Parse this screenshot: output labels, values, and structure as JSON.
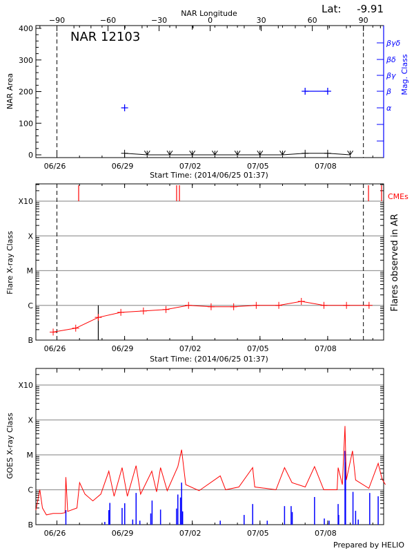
{
  "colors": {
    "flare": "#ff0000",
    "goes": "#ff0000",
    "goes_events": "#0000ff",
    "mag_class": "#0000ff",
    "area": "#000000",
    "grid": "#999999"
  },
  "footer": "Prepared by HELIO",
  "chart_data": [
    {
      "type": "line",
      "title": "NAR 12103",
      "lat_label": "Lat:",
      "lat_value": "-9.91",
      "top_axis_label": "NAR Longitude",
      "top_ticks": [
        -90,
        -60,
        -30,
        0,
        30,
        60,
        90
      ],
      "limb_lines": [
        {
          "date": "06/26 00:00",
          "lon": -90
        },
        {
          "date": "07/09 14:00",
          "lon": 90
        }
      ],
      "xlabel": "Start Time: (2014/06/25 01:37)",
      "xticks": [
        "06/26",
        "06/29",
        "07/02",
        "07/05",
        "07/08"
      ],
      "xrange": [
        "06/25 01:37",
        "07/10 13:30"
      ],
      "ylabel": "NAR Area",
      "ylim": [
        0,
        400
      ],
      "yticks": [
        0,
        100,
        200,
        300,
        400
      ],
      "y2label": "Mag. Class",
      "y2ticks": [
        "α",
        "β",
        "βγ",
        "βδ",
        "βγδ"
      ],
      "area_series": [
        {
          "date": "06/29 00:00",
          "value": 5
        },
        {
          "date": "06/30 00:00",
          "value": 0,
          "upper_limit": true
        },
        {
          "date": "07/01 00:00",
          "value": 0,
          "upper_limit": true
        },
        {
          "date": "07/02 00:00",
          "value": 0,
          "upper_limit": true
        },
        {
          "date": "07/03 00:00",
          "value": 0,
          "upper_limit": true
        },
        {
          "date": "07/04 00:00",
          "value": 0,
          "upper_limit": true
        },
        {
          "date": "07/05 00:00",
          "value": 0,
          "upper_limit": true
        },
        {
          "date": "07/06 00:00",
          "value": 0,
          "upper_limit": true
        },
        {
          "date": "07/07 00:00",
          "value": 5
        },
        {
          "date": "07/08 00:00",
          "value": 5
        },
        {
          "date": "07/09 00:00",
          "value": 0,
          "upper_limit": true
        }
      ],
      "mag_class_series": [
        [
          {
            "date": "06/29 00:00",
            "class": "α"
          }
        ],
        [
          {
            "date": "07/07 00:00",
            "class": "β"
          },
          {
            "date": "07/08 00:00",
            "class": "β"
          }
        ]
      ]
    },
    {
      "type": "line",
      "xlabel": "Start Time: (2014/06/25 01:37)",
      "xticks": [
        "06/26",
        "06/29",
        "07/02",
        "07/05",
        "07/08"
      ],
      "ylabel": "Flare X-ray Class",
      "y2label": "Flares observed in AR",
      "yticks": [
        "B",
        "C",
        "M",
        "X",
        "X10"
      ],
      "yscale": "log",
      "grid": true,
      "cme_label": "CMEs",
      "cmes": [
        "06/26 23:07",
        "07/01 07:19",
        "07/01 10:19",
        "07/09 19:25",
        "07/10 09:19"
      ],
      "observed_flare_marker": {
        "date": "06/27 20:00",
        "class": "C1.0"
      },
      "flare_series": [
        {
          "date": "06/25 20:00",
          "class": "B1.7"
        },
        {
          "date": "06/26 20:00",
          "class": "B2.2"
        },
        {
          "date": "06/27 20:00",
          "class": "B4.5"
        },
        {
          "date": "06/28 20:00",
          "class": "B6.3"
        },
        {
          "date": "06/29 20:00",
          "class": "B6.9"
        },
        {
          "date": "06/30 20:00",
          "class": "B7.6"
        },
        {
          "date": "07/01 20:00",
          "class": "C1.0"
        },
        {
          "date": "07/02 20:00",
          "class": "B9.1"
        },
        {
          "date": "07/03 20:00",
          "class": "B9.1"
        },
        {
          "date": "07/04 20:00",
          "class": "C1.0"
        },
        {
          "date": "07/05 20:00",
          "class": "C1.0"
        },
        {
          "date": "07/06 20:00",
          "class": "C1.3"
        },
        {
          "date": "07/07 20:00",
          "class": "C1.0"
        },
        {
          "date": "07/08 20:00",
          "class": "C1.0"
        },
        {
          "date": "07/09 20:00",
          "class": "C1.0"
        }
      ]
    },
    {
      "type": "line",
      "ylabel": "GOES X-ray Class",
      "xticks": [
        "06/26",
        "06/29",
        "07/02",
        "07/05",
        "07/08"
      ],
      "yticks": [
        "B",
        "C",
        "M",
        "X",
        "X10"
      ],
      "yscale": "log",
      "grid": true,
      "goes_flux": [
        [
          "06/25 01:37",
          2.6e-07
        ],
        [
          "06/25 05:49",
          1e-06
        ],
        [
          "06/25 08:37",
          3e-07
        ],
        [
          "06/25 12:49",
          1.9e-07
        ],
        [
          "06/25 19:55",
          2.1e-07
        ],
        [
          "06/26 04:25",
          2.1e-07
        ],
        [
          "06/26 08:37",
          2.2e-07
        ],
        [
          "06/26 09:31",
          2.3e-06
        ],
        [
          "06/26 11:25",
          2.4e-07
        ],
        [
          "06/26 21:19",
          3e-07
        ],
        [
          "06/27 00:07",
          1.6e-06
        ],
        [
          "06/27 05:49",
          7.5e-07
        ],
        [
          "06/27 14:13",
          4.8e-07
        ],
        [
          "06/27 22:43",
          7.5e-07
        ],
        [
          "06/28 07:13",
          3.4e-06
        ],
        [
          "06/28 12:49",
          6.5e-07
        ],
        [
          "06/28 21:19",
          4.3e-06
        ],
        [
          "06/29 02:55",
          6.5e-07
        ],
        [
          "06/29 12:13",
          4.9e-06
        ],
        [
          "06/29 17:01",
          7.5e-07
        ],
        [
          "06/30 04:55",
          3.4e-06
        ],
        [
          "06/30 10:01",
          8.7e-07
        ],
        [
          "06/30 14:13",
          4.3e-06
        ],
        [
          "06/30 21:19",
          9.4e-07
        ],
        [
          "07/01 08:37",
          4.6e-06
        ],
        [
          "07/01 12:37",
          1.4e-05
        ],
        [
          "07/01 17:01",
          1.4e-06
        ],
        [
          "07/02 07:13",
          9.4e-07
        ],
        [
          "07/03 05:43",
          2.5e-06
        ],
        [
          "07/03 11:25",
          1e-06
        ],
        [
          "07/04 01:31",
          1.2e-06
        ],
        [
          "07/04 16:13",
          4.3e-06
        ],
        [
          "07/04 18:25",
          1.2e-06
        ],
        [
          "07/05 05:43",
          1.1e-06
        ],
        [
          "07/05 17:01",
          1e-06
        ],
        [
          "07/06 02:07",
          4.3e-06
        ],
        [
          "07/06 10:01",
          1.6e-06
        ],
        [
          "07/07 00:07",
          1.2e-06
        ],
        [
          "07/07 10:01",
          4.6e-06
        ],
        [
          "07/07 19:49",
          1e-06
        ],
        [
          "07/08 10:01",
          1e-06
        ],
        [
          "07/08 11:07",
          4.3e-06
        ],
        [
          "07/08 15:37",
          1.4e-06
        ],
        [
          "07/08 18:25",
          6.7e-05
        ],
        [
          "07/08 19:49",
          1.9e-06
        ],
        [
          "07/09 02:25",
          1.3e-05
        ],
        [
          "07/09 05:43",
          1.9e-06
        ],
        [
          "07/09 19:49",
          1.1e-06
        ],
        [
          "07/10 05:43",
          5.7e-06
        ],
        [
          "07/10 09:55",
          2e-06
        ],
        [
          "07/10 13:25",
          1.4e-06
        ]
      ],
      "goes_events": [
        [
          "06/26 09:31",
          2.6e-07
        ],
        [
          "06/28 02:55",
          1.2e-07
        ],
        [
          "06/28 07:13",
          2.6e-07
        ],
        [
          "06/28 08:19",
          4.2e-07
        ],
        [
          "06/28 21:19",
          3e-07
        ],
        [
          "06/29 00:07",
          4.1e-07
        ],
        [
          "06/29 08:37",
          1.4e-07
        ],
        [
          "06/29 12:13",
          8.1e-07
        ],
        [
          "06/29 16:13",
          1.3e-07
        ],
        [
          "06/30 03:49",
          2.1e-07
        ],
        [
          "06/30 05:13",
          4.9e-07
        ],
        [
          "06/30 14:13",
          2.7e-07
        ],
        [
          "07/01 07:13",
          2.9e-07
        ],
        [
          "07/01 08:37",
          7.3e-07
        ],
        [
          "07/01 11:25",
          6e-07
        ],
        [
          "07/01 12:37",
          1.6e-06
        ],
        [
          "07/01 13:43",
          2.4e-07
        ],
        [
          "07/03 05:43",
          1.3e-07
        ],
        [
          "07/04 07:07",
          1.9e-07
        ],
        [
          "07/04 16:13",
          3.9e-07
        ],
        [
          "07/05 07:43",
          1.3e-07
        ],
        [
          "07/06 02:07",
          3.4e-07
        ],
        [
          "07/06 09:07",
          3.4e-07
        ],
        [
          "07/06 10:19",
          2.3e-07
        ],
        [
          "07/07 10:01",
          6.2e-07
        ],
        [
          "07/07 20:25",
          1.5e-07
        ],
        [
          "07/08 01:31",
          1.3e-07
        ],
        [
          "07/08 11:07",
          3.9e-07
        ],
        [
          "07/08 11:43",
          1.9e-07
        ],
        [
          "07/08 18:25",
          1.3e-05
        ],
        [
          "07/08 19:01",
          6.2e-06
        ],
        [
          "07/09 02:55",
          8.7e-07
        ],
        [
          "07/09 05:43",
          2.5e-07
        ],
        [
          "07/09 08:31",
          1.4e-07
        ],
        [
          "07/09 20:43",
          8.1e-07
        ],
        [
          "07/10 05:43",
          6.5e-07
        ]
      ]
    }
  ]
}
